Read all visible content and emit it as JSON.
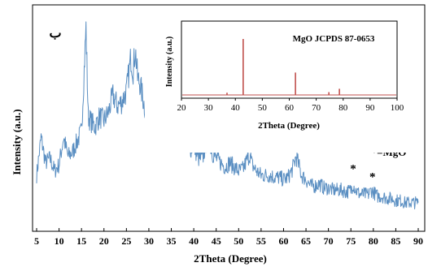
{
  "chart_data": [
    {
      "type": "line",
      "panel_label": "ب",
      "xlabel": "2Theta (Degree)",
      "ylabel": "Intensity (a.u.)",
      "xlim": [
        5,
        90
      ],
      "xticks": [
        5,
        10,
        15,
        20,
        25,
        30,
        35,
        40,
        45,
        50,
        55,
        60,
        65,
        70,
        75,
        80,
        85,
        90
      ],
      "ylim": [
        0,
        100
      ],
      "y_tick_labels_shown": false,
      "grid": false,
      "line_color": "#5b8fc2",
      "series": [
        {
          "x": [
            5,
            6,
            7,
            8,
            9,
            10,
            11,
            12,
            13,
            14,
            15,
            16,
            16.5,
            17,
            18,
            19,
            20,
            21,
            22,
            23,
            24,
            25,
            26,
            26.5,
            27,
            27.5,
            28,
            29,
            30,
            31,
            32,
            33,
            34,
            35,
            36,
            36.8,
            37.5,
            38,
            39,
            40,
            41,
            42,
            43,
            43.3,
            44,
            45,
            46,
            47,
            48,
            49,
            50,
            51,
            52,
            52.5,
            53,
            54,
            55,
            56,
            57,
            58,
            59,
            60,
            61,
            62,
            62.8,
            63.5,
            64,
            65,
            66,
            67,
            68,
            69,
            70,
            71,
            72,
            73,
            74,
            75,
            75.5,
            76,
            77,
            78,
            79,
            79.5,
            80,
            81,
            82,
            83,
            84,
            85,
            86,
            87,
            88,
            89,
            90
          ],
          "y": [
            22,
            40,
            28,
            30,
            24,
            27,
            40,
            31,
            33,
            38,
            43,
            92,
            50,
            48,
            45,
            50,
            48,
            52,
            60,
            55,
            57,
            62,
            78,
            72,
            82,
            68,
            66,
            55,
            48,
            45,
            50,
            42,
            40,
            40,
            46,
            54,
            44,
            38,
            34,
            36,
            30,
            30,
            40,
            42,
            33,
            30,
            28,
            26,
            28,
            26,
            24,
            25,
            30,
            32,
            27,
            24,
            22,
            22,
            22,
            21,
            21,
            20,
            21,
            25,
            31,
            26,
            22,
            20,
            17,
            17,
            18,
            16,
            16,
            15,
            15,
            15,
            14,
            15,
            18,
            15,
            13,
            13,
            13,
            15,
            14,
            12,
            12,
            11,
            11,
            10,
            10,
            9,
            9,
            9,
            9
          ]
        }
      ],
      "annotations": [
        {
          "text": "*",
          "x": 37
        },
        {
          "text": "*",
          "x": 43.2
        },
        {
          "text": "*",
          "x": 63
        },
        {
          "text": "*",
          "x": 75.5
        },
        {
          "text": "*",
          "x": 79.8
        }
      ],
      "legend_text": "*=MgO"
    },
    {
      "type": "line",
      "title": "MgO JCPDS 87-0653",
      "xlabel": "2Theta (Degree)",
      "ylabel": "Intensity (a.u.)",
      "xlim": [
        20,
        100
      ],
      "xticks": [
        20,
        30,
        40,
        50,
        60,
        70,
        80,
        90,
        100
      ],
      "ylim": [
        0,
        100
      ],
      "grid": false,
      "line_color": "#c0504d",
      "peaks": [
        {
          "x": 36.9,
          "y": 4
        },
        {
          "x": 42.9,
          "y": 100
        },
        {
          "x": 62.3,
          "y": 40
        },
        {
          "x": 74.7,
          "y": 5
        },
        {
          "x": 78.6,
          "y": 11
        }
      ]
    }
  ]
}
